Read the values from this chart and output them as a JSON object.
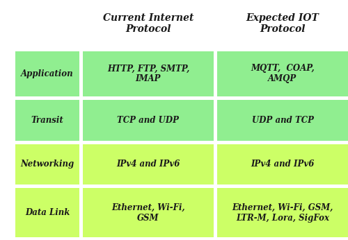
{
  "title_col1": "Current Internet\nProtocol",
  "title_col2": "Expected IOT\nProtocol",
  "rows": [
    {
      "label": "Application",
      "col1": "HTTP, FTP, SMTP,\nIMAP",
      "col2": "MQTT,  COAP,\nAMQP",
      "color": "#90EE90"
    },
    {
      "label": "Transit",
      "col1": "TCP and UDP",
      "col2": "UDP and TCP",
      "color": "#90EE90"
    },
    {
      "label": "Networking",
      "col1": "IPv4 and IPv6",
      "col2": "IPv4 and IPv6",
      "color": "#CCFF66"
    },
    {
      "label": "Data Link",
      "col1": "Ethernet, Wi-Fi,\nGSM",
      "col2": "Ethernet, Wi-Fi, GSM,\nLTR-M, Lora, SigFox",
      "color": "#CCFF66"
    }
  ],
  "background_color": "#ffffff",
  "text_color": "#1a1a1a",
  "title_fontsize": 10,
  "cell_fontsize": 8.5,
  "label_fontsize": 8.5,
  "figw": 5.0,
  "figh": 3.46,
  "dpi": 100
}
